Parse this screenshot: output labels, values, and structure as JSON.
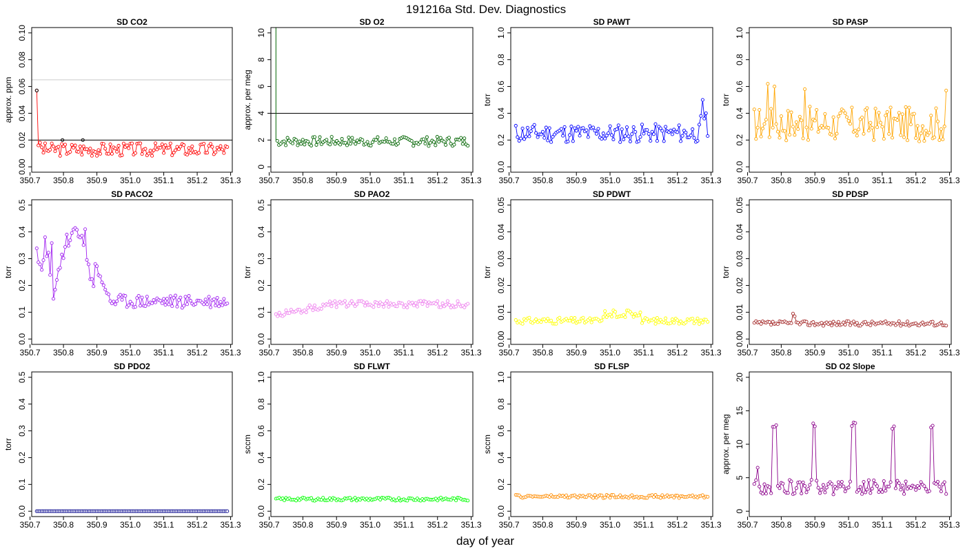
{
  "figure": {
    "title": "191216a   Std. Dev. Diagnostics",
    "xlabel": "day of year"
  },
  "chart_data": [
    {
      "type": "line",
      "title": "SD CO2",
      "ylabel": "approx. ppm",
      "xlim": [
        350.705,
        351.305
      ],
      "ylim": [
        -0.004,
        0.104
      ],
      "yticks": [
        0.0,
        0.02,
        0.04,
        0.06,
        0.08,
        0.1
      ],
      "ytick_labels": [
        "0.00",
        "0.02",
        "0.04",
        "0.06",
        "0.08",
        "0.10"
      ],
      "color": "#ff0000",
      "hlines": [
        {
          "y": 0.02,
          "color": "#000000"
        },
        {
          "y": 0.065,
          "color": "#cccccc"
        }
      ],
      "generator": {
        "x0": 350.72,
        "x1": 351.29,
        "n": 115,
        "pattern": "noise",
        "base": 0.013,
        "amp": 0.005,
        "seed": 3,
        "overrides": [
          [
            0,
            0.057
          ],
          [
            1,
            0.016
          ],
          [
            2,
            0.018
          ]
        ]
      },
      "highlight": {
        "color": "#000000",
        "x": [
          350.72,
          350.797,
          350.858
        ],
        "y": [
          0.057,
          0.02,
          0.02
        ]
      }
    },
    {
      "type": "line",
      "title": "SD O2",
      "ylabel": "approx. per meg",
      "xlim": [
        350.705,
        351.305
      ],
      "ylim": [
        -0.4,
        10.4
      ],
      "yticks": [
        0,
        2,
        4,
        6,
        8,
        10
      ],
      "ytick_labels": [
        "0",
        "2",
        "4",
        "6",
        "8",
        "10"
      ],
      "color": "#006400",
      "hlines": [
        {
          "y": 4,
          "color": "#000000"
        }
      ],
      "generator": {
        "x0": 350.724,
        "x1": 351.29,
        "n": 113,
        "pattern": "noise",
        "base": 1.9,
        "amp": 0.35,
        "seed": 7,
        "overrides": []
      },
      "spike": {
        "x": 350.72,
        "y_top": 10.4,
        "y_bottom": 2.0
      }
    },
    {
      "type": "line",
      "title": "SD PAWT",
      "ylabel": "torr",
      "xlim": [
        350.705,
        351.305
      ],
      "ylim": [
        -0.04,
        1.04
      ],
      "yticks": [
        0.0,
        0.2,
        0.4,
        0.6,
        0.8,
        1.0
      ],
      "ytick_labels": [
        "0.0",
        "0.2",
        "0.4",
        "0.6",
        "0.8",
        "1.0"
      ],
      "color": "#0000ff",
      "hlines": [],
      "generator": {
        "x0": 350.72,
        "x1": 351.29,
        "n": 115,
        "pattern": "noise",
        "base": 0.25,
        "amp": 0.07,
        "seed": 11,
        "overrides": [
          [
            110,
            0.38
          ],
          [
            111,
            0.5
          ],
          [
            112,
            0.36
          ],
          [
            113,
            0.4
          ]
        ]
      }
    },
    {
      "type": "line",
      "title": "SD PASP",
      "ylabel": "torr",
      "xlim": [
        350.705,
        351.305
      ],
      "ylim": [
        -0.04,
        1.04
      ],
      "yticks": [
        0.0,
        0.2,
        0.4,
        0.6,
        0.8,
        1.0
      ],
      "ytick_labels": [
        "0.0",
        "0.2",
        "0.4",
        "0.6",
        "0.8",
        "1.0"
      ],
      "color": "#ffa500",
      "hlines": [],
      "generator": {
        "x0": 350.72,
        "x1": 351.29,
        "n": 115,
        "pattern": "noise",
        "base": 0.32,
        "amp": 0.13,
        "seed": 17,
        "overrides": [
          [
            8,
            0.62
          ],
          [
            12,
            0.6
          ],
          [
            30,
            0.58
          ],
          [
            114,
            0.57
          ]
        ]
      }
    },
    {
      "type": "line",
      "title": "SD PACO2",
      "ylabel": "torr",
      "xlim": [
        350.705,
        351.305
      ],
      "ylim": [
        -0.02,
        0.52
      ],
      "yticks": [
        0.0,
        0.1,
        0.2,
        0.3,
        0.4,
        0.5
      ],
      "ytick_labels": [
        "0.0",
        "0.1",
        "0.2",
        "0.3",
        "0.4",
        "0.5"
      ],
      "color": "#a020f0",
      "hlines": [],
      "generator": {
        "x0": 350.72,
        "x1": 351.29,
        "n": 115,
        "pattern": "paco2",
        "base": 0.14,
        "amp": 0.025,
        "seed": 23,
        "overrides": [
          [
            5,
            0.38
          ],
          [
            29,
            0.41
          ]
        ]
      }
    },
    {
      "type": "line",
      "title": "SD PAO2",
      "ylabel": "torr",
      "xlim": [
        350.705,
        351.305
      ],
      "ylim": [
        -0.02,
        0.52
      ],
      "yticks": [
        0.0,
        0.1,
        0.2,
        0.3,
        0.4,
        0.5
      ],
      "ytick_labels": [
        "0.0",
        "0.1",
        "0.2",
        "0.3",
        "0.4",
        "0.5"
      ],
      "color": "#ee82ee",
      "hlines": [],
      "generator": {
        "x0": 350.72,
        "x1": 351.29,
        "n": 115,
        "pattern": "pao2",
        "base": 0.12,
        "amp": 0.012,
        "seed": 29,
        "overrides": []
      }
    },
    {
      "type": "line",
      "title": "SD PDWT",
      "ylabel": "torr",
      "xlim": [
        350.705,
        351.305
      ],
      "ylim": [
        -0.002,
        0.052
      ],
      "yticks": [
        0.0,
        0.01,
        0.02,
        0.03,
        0.04,
        0.05
      ],
      "ytick_labels": [
        "0.00",
        "0.01",
        "0.02",
        "0.03",
        "0.04",
        "0.05"
      ],
      "color": "#ffff00",
      "hlines": [],
      "generator": {
        "x0": 350.72,
        "x1": 351.29,
        "n": 115,
        "pattern": "pdwt",
        "base": 0.0068,
        "amp": 0.0012,
        "seed": 31,
        "overrides": []
      }
    },
    {
      "type": "line",
      "title": "SD PDSP",
      "ylabel": "torr",
      "xlim": [
        350.705,
        351.305
      ],
      "ylim": [
        -0.002,
        0.052
      ],
      "yticks": [
        0.0,
        0.01,
        0.02,
        0.03,
        0.04,
        0.05
      ],
      "ytick_labels": [
        "0.00",
        "0.01",
        "0.02",
        "0.03",
        "0.04",
        "0.05"
      ],
      "color": "#a52a2a",
      "hlines": [],
      "generator": {
        "x0": 350.72,
        "x1": 351.29,
        "n": 115,
        "pattern": "noise",
        "base": 0.0058,
        "amp": 0.0009,
        "seed": 37,
        "overrides": [
          [
            23,
            0.0095
          ],
          [
            24,
            0.0085
          ]
        ]
      }
    },
    {
      "type": "line",
      "title": "SD PDO2",
      "ylabel": "torr",
      "xlim": [
        350.705,
        351.305
      ],
      "ylim": [
        -0.02,
        0.52
      ],
      "yticks": [
        0.0,
        0.1,
        0.2,
        0.3,
        0.4,
        0.5
      ],
      "ytick_labels": [
        "0.0",
        "0.1",
        "0.2",
        "0.3",
        "0.4",
        "0.5"
      ],
      "color": "#00008b",
      "hlines": [],
      "generator": {
        "x0": 350.72,
        "x1": 351.29,
        "n": 115,
        "pattern": "flat",
        "base": 0.0,
        "amp": 0.0,
        "seed": 41,
        "overrides": []
      }
    },
    {
      "type": "line",
      "title": "SD FLWT",
      "ylabel": "sccm",
      "xlim": [
        350.705,
        351.305
      ],
      "ylim": [
        -0.04,
        1.04
      ],
      "yticks": [
        0.0,
        0.2,
        0.4,
        0.6,
        0.8,
        1.0
      ],
      "ytick_labels": [
        "0.0",
        "0.2",
        "0.4",
        "0.6",
        "0.8",
        "1.0"
      ],
      "color": "#00ff00",
      "hlines": [],
      "generator": {
        "x0": 350.72,
        "x1": 351.29,
        "n": 115,
        "pattern": "noise",
        "base": 0.09,
        "amp": 0.012,
        "seed": 43,
        "overrides": []
      }
    },
    {
      "type": "line",
      "title": "SD FLSP",
      "ylabel": "sccm",
      "xlim": [
        350.705,
        351.305
      ],
      "ylim": [
        -0.04,
        1.04
      ],
      "yticks": [
        0.0,
        0.2,
        0.4,
        0.6,
        0.8,
        1.0
      ],
      "ytick_labels": [
        "0.0",
        "0.2",
        "0.4",
        "0.6",
        "0.8",
        "1.0"
      ],
      "color": "#ff8c00",
      "hlines": [],
      "generator": {
        "x0": 350.72,
        "x1": 351.29,
        "n": 115,
        "pattern": "noise",
        "base": 0.11,
        "amp": 0.012,
        "seed": 47,
        "overrides": []
      }
    },
    {
      "type": "line",
      "title": "SD O2 Slope",
      "ylabel": "approx. per meg",
      "xlim": [
        350.705,
        351.305
      ],
      "ylim": [
        -0.8,
        20.8
      ],
      "yticks": [
        0,
        5,
        10,
        15,
        20
      ],
      "ytick_labels": [
        "0",
        "5",
        "10",
        "15",
        "20"
      ],
      "color": "#8b008b",
      "hlines": [],
      "generator": {
        "x0": 350.72,
        "x1": 351.29,
        "n": 115,
        "pattern": "slope",
        "base": 3.8,
        "amp": 0.9,
        "seed": 53,
        "overrides": [
          [
            2,
            6.5
          ]
        ]
      }
    }
  ],
  "xticks": [
    350.7,
    350.8,
    350.9,
    351.0,
    351.1,
    351.2,
    351.3
  ],
  "xtick_labels": [
    "350.7",
    "350.8",
    "350.9",
    "351.0",
    "351.1",
    "351.2",
    "351.3"
  ]
}
